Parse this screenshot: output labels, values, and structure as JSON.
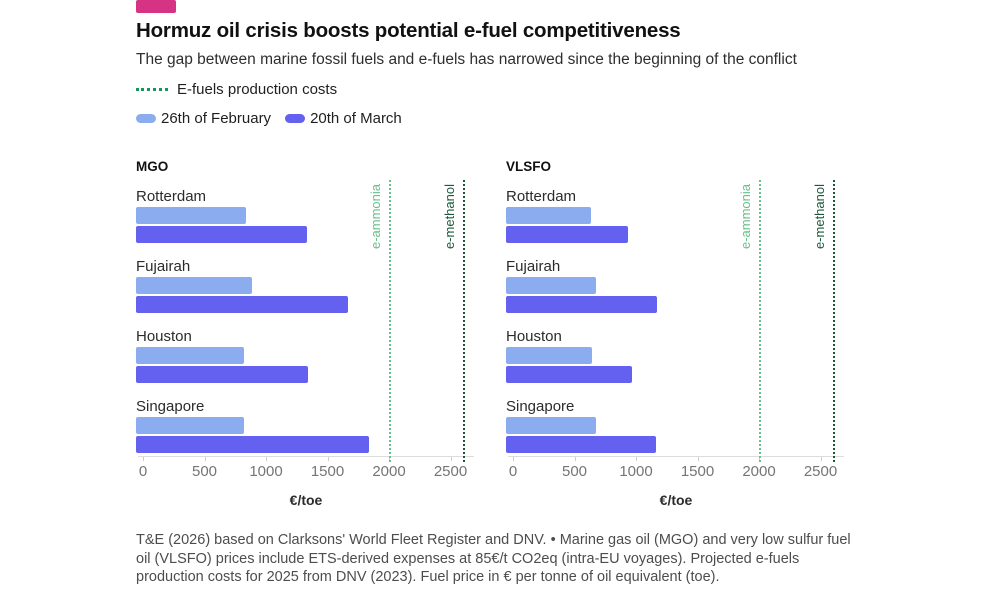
{
  "header": {
    "tag_color": "#D63384",
    "title": "Hormuz oil crisis boosts potential e-fuel competitiveness",
    "subtitle": "The gap between marine fossil fuels and e-fuels has narrowed since the beginning of the conflict"
  },
  "legend": {
    "efuels_label": "E-fuels production costs",
    "efuels_color": "#13975A",
    "series": [
      {
        "label": "26th of February",
        "color": "#8BADEF"
      },
      {
        "label": "20th of March",
        "color": "#6460F0"
      }
    ]
  },
  "chart_data": [
    {
      "type": "bar",
      "orientation": "horizontal",
      "title": "MGO",
      "xlabel": "€/toe",
      "xlim": [
        0,
        2700
      ],
      "xticks": [
        0,
        500,
        1000,
        1500,
        2000,
        2500
      ],
      "grid": false,
      "categories": [
        "Rotterdam",
        "Fujairah",
        "Houston",
        "Singapore"
      ],
      "series": [
        {
          "name": "26th of February",
          "color": "#8BADEF",
          "values": [
            890,
            940,
            880,
            880
          ]
        },
        {
          "name": "20th of March",
          "color": "#6460F0",
          "values": [
            1390,
            1720,
            1400,
            1890
          ]
        }
      ],
      "reference_lines": [
        {
          "label": "e-ammonia",
          "value": 2000,
          "color": "#68C08B"
        },
        {
          "label": "e-methanol",
          "value": 2600,
          "color": "#1B5838"
        }
      ]
    },
    {
      "type": "bar",
      "orientation": "horizontal",
      "title": "VLSFO",
      "xlabel": "€/toe",
      "xlim": [
        0,
        2700
      ],
      "xticks": [
        0,
        500,
        1000,
        1500,
        2000,
        2500
      ],
      "grid": false,
      "categories": [
        "Rotterdam",
        "Fujairah",
        "Houston",
        "Singapore"
      ],
      "series": [
        {
          "name": "26th of February",
          "color": "#8BADEF",
          "values": [
            690,
            730,
            700,
            730
          ]
        },
        {
          "name": "20th of March",
          "color": "#6460F0",
          "values": [
            990,
            1230,
            1020,
            1220
          ]
        }
      ],
      "reference_lines": [
        {
          "label": "e-ammonia",
          "value": 2000,
          "color": "#68C08B"
        },
        {
          "label": "e-methanol",
          "value": 2600,
          "color": "#1B5838"
        }
      ]
    }
  ],
  "footer": {
    "source": "T&E (2026) based on Clarksons' World Fleet Register and DNV. • Marine gas oil (MGO) and very low sulfur fuel oil (VLSFO) prices include ETS-derived expenses at 85€/t CO2eq (intra-EU voyages). Projected e-fuels production costs for 2025 from DNV (2023). Fuel price in € per tonne of oil equivalent (toe)."
  }
}
